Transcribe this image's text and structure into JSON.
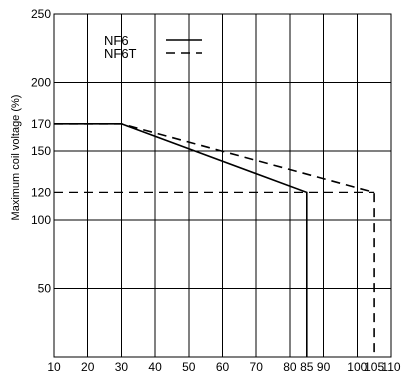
{
  "chart_data": {
    "type": "line",
    "title": "",
    "xlabel": "",
    "ylabel": "Maximum coil voltage (%)",
    "xlim": [
      10,
      110
    ],
    "ylim": [
      0,
      250
    ],
    "x_ticks": [
      10,
      20,
      30,
      40,
      50,
      60,
      70,
      80,
      85,
      90,
      100,
      105,
      110
    ],
    "x_tick_labels": [
      "10",
      "20",
      "30",
      "40",
      "50",
      "60",
      "70",
      "80",
      "85",
      "90",
      "100",
      "105",
      "110"
    ],
    "y_ticks": [
      50,
      100,
      120,
      150,
      170,
      200,
      250
    ],
    "y_tick_labels": [
      "50",
      "100",
      "120",
      "150",
      "170",
      "200",
      "250"
    ],
    "x_gridlines": [
      20,
      30,
      40,
      50,
      60,
      70,
      80,
      90,
      100
    ],
    "y_gridlines": [
      50,
      100,
      150,
      200
    ],
    "grid": true,
    "legend_position": "top-left",
    "series": [
      {
        "name": "NF6",
        "style": "solid",
        "color": "#000000",
        "x": [
          10,
          30,
          85,
          85
        ],
        "y": [
          170,
          170,
          120,
          0
        ]
      },
      {
        "name": "NF6T",
        "style": "dashed",
        "color": "#000000",
        "x": [
          10,
          30,
          105,
          105
        ],
        "y": [
          170,
          170,
          120,
          0
        ]
      }
    ],
    "reference_lines": [
      {
        "orientation": "horizontal",
        "value": 120,
        "style": "dashed",
        "from": 10,
        "to": 105
      }
    ]
  }
}
